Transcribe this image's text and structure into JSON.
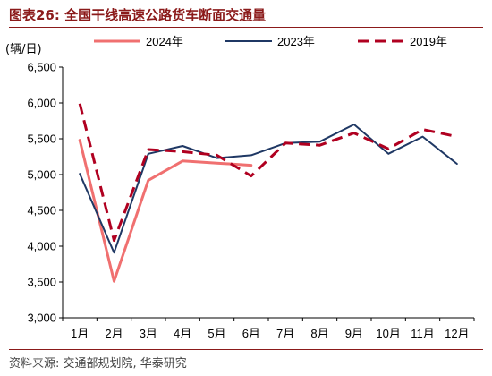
{
  "header": {
    "title": "图表26:   全国干线高速公路货车断面交通量"
  },
  "footer": {
    "source": "资料来源: 交通部规划院, 华泰研究"
  },
  "chart_data": {
    "type": "line",
    "ylabel": "(辆/日)",
    "categories": [
      "1月",
      "2月",
      "3月",
      "4月",
      "5月",
      "6月",
      "7月",
      "8月",
      "9月",
      "10月",
      "11月",
      "12月"
    ],
    "ylim": [
      3000,
      6500
    ],
    "yticks": [
      3000,
      3500,
      4000,
      4500,
      5000,
      5500,
      6000,
      6500
    ],
    "ytick_labels": [
      "3,000",
      "3,500",
      "4,000",
      "4,500",
      "5,000",
      "5,500",
      "6,000",
      "6,500"
    ],
    "legend_position": "top",
    "grid": false,
    "series": [
      {
        "name": "2024年",
        "color": "#f07070",
        "dash": "",
        "width": 3,
        "values": [
          5480,
          3510,
          4920,
          5190,
          5160,
          5130,
          null,
          null,
          null,
          null,
          null,
          null
        ]
      },
      {
        "name": "2023年",
        "color": "#1f3864",
        "dash": "",
        "width": 2,
        "values": [
          5010,
          3910,
          5290,
          5400,
          5230,
          5270,
          5440,
          5460,
          5700,
          5290,
          5530,
          5150
        ]
      },
      {
        "name": "2019年",
        "color": "#b00020",
        "dash": "12,7",
        "width": 3,
        "values": [
          5990,
          4080,
          5350,
          5320,
          5270,
          4980,
          5440,
          5410,
          5580,
          5360,
          5630,
          5530
        ]
      }
    ]
  }
}
